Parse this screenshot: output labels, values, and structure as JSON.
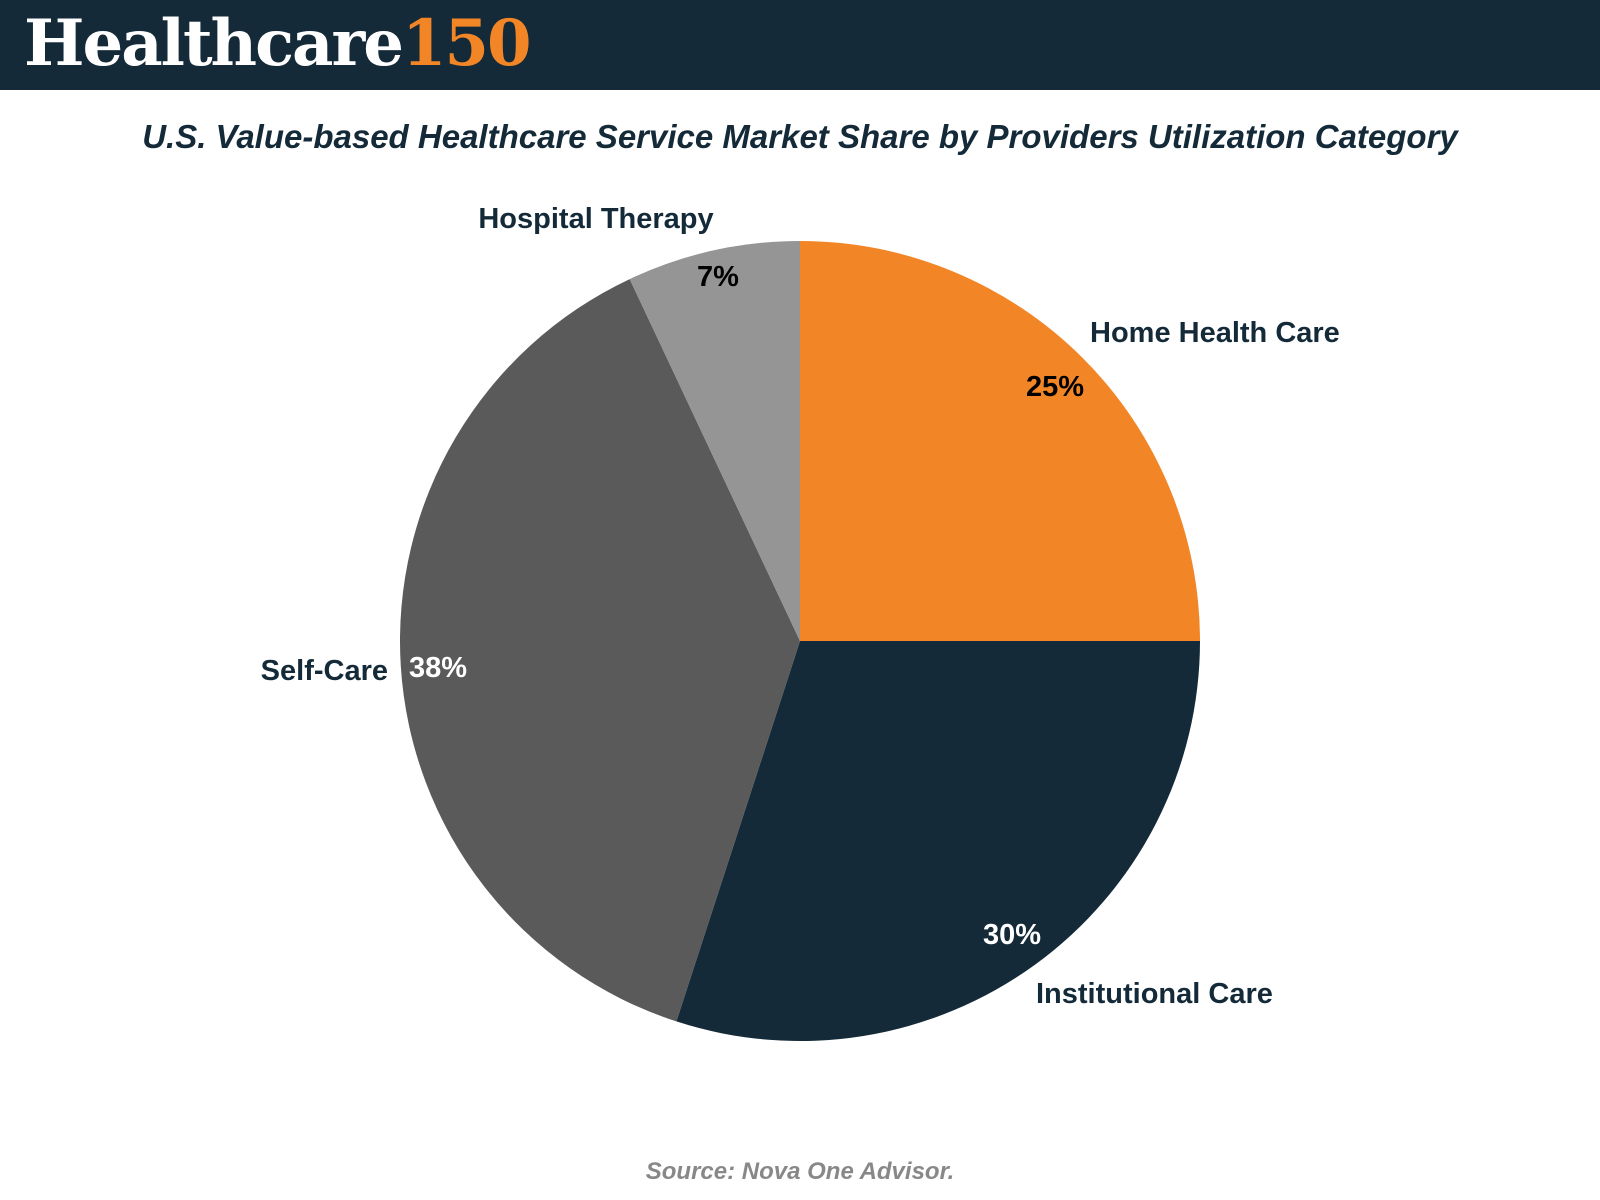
{
  "brand": {
    "word": "Healthcare",
    "number": "150",
    "bar_color": "#142a38",
    "accent_color": "#f28627"
  },
  "chart_data": {
    "type": "pie",
    "title": "U.S. Value-based Healthcare Service Market Share by Providers Utilization Category",
    "slices": [
      {
        "label": "Home Health Care",
        "value": 25,
        "display": "25%",
        "color": "#f28627",
        "label_color": "#000000"
      },
      {
        "label": "Institutional Care",
        "value": 30,
        "display": "30%",
        "color": "#142a38",
        "label_color": "#ffffff"
      },
      {
        "label": "Self-Care",
        "value": 38,
        "display": "38%",
        "color": "#5a5a5a",
        "label_color": "#ffffff"
      },
      {
        "label": "Hospital Therapy",
        "value": 7,
        "display": "7%",
        "color": "#959595",
        "label_color": "#000000"
      }
    ]
  },
  "source": "Source: Nova One Advisor."
}
